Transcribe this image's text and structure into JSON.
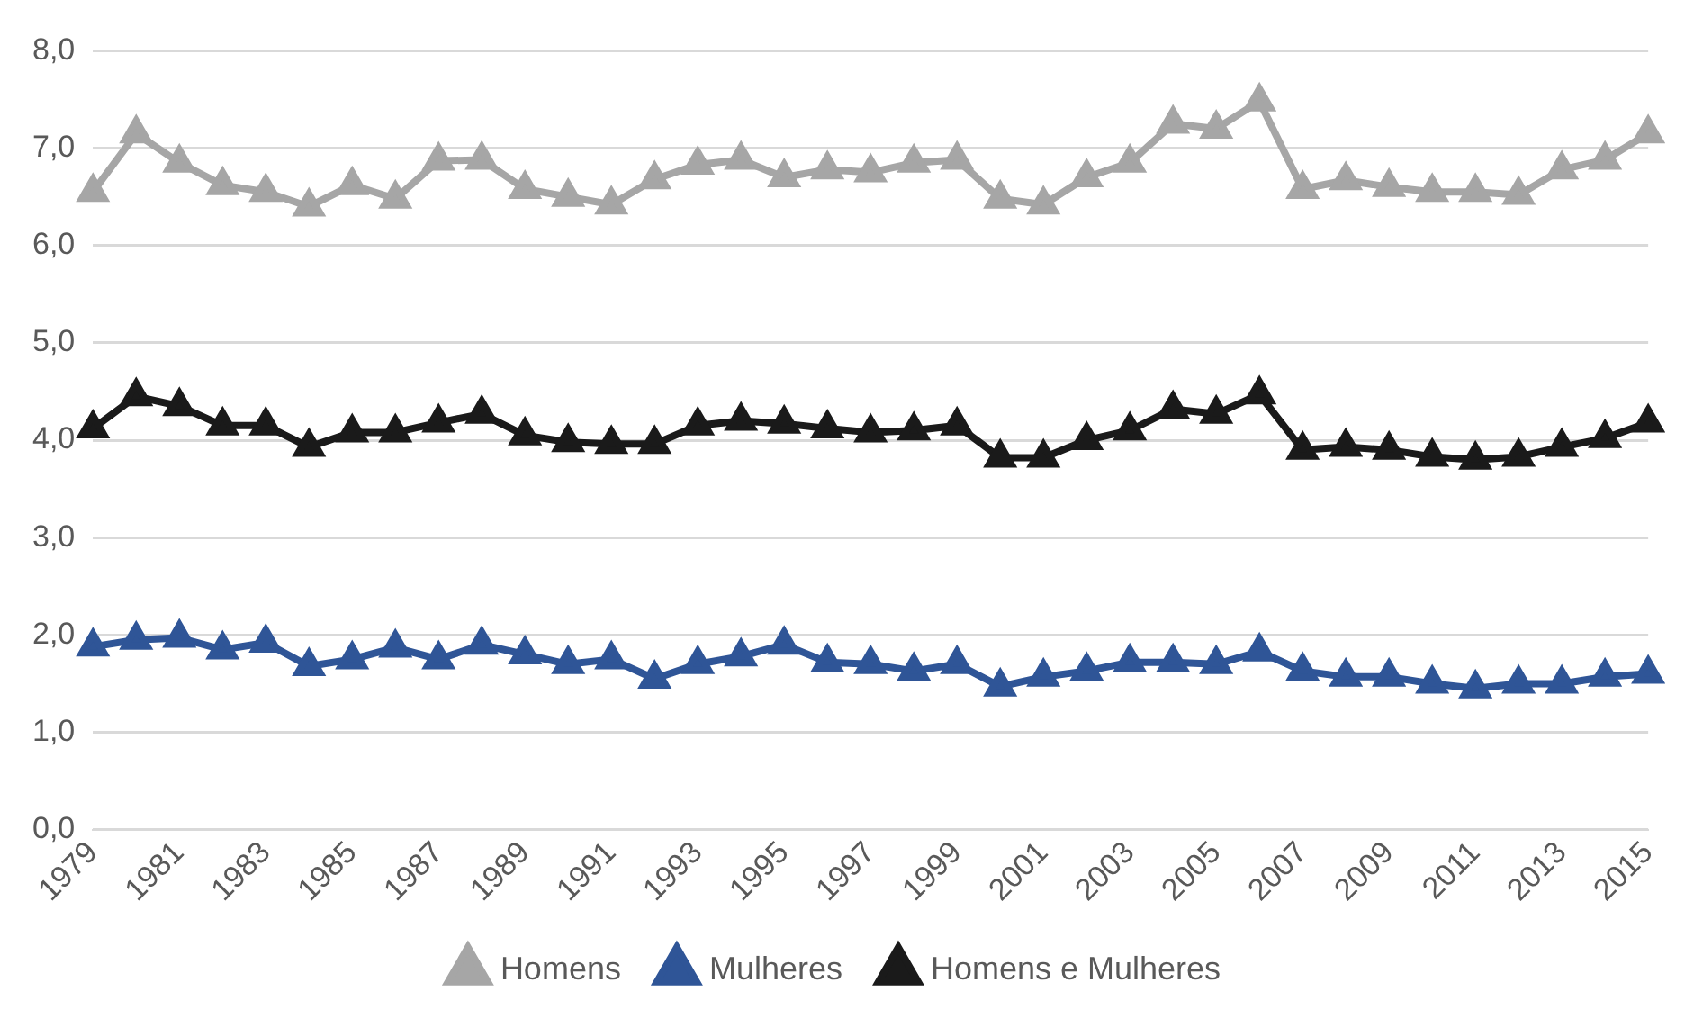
{
  "chart_data": {
    "type": "line",
    "categories": [
      "1979",
      null,
      "1981",
      null,
      "1983",
      null,
      "1985",
      null,
      "1987",
      null,
      "1989",
      null,
      "1991",
      null,
      "1993",
      null,
      "1995",
      null,
      "1997",
      null,
      "1999",
      null,
      "2001",
      null,
      "2003",
      null,
      "2005",
      null,
      "2007",
      null,
      "2009",
      null,
      "2011",
      null,
      "2013",
      null,
      "2015"
    ],
    "series": [
      {
        "name": "Homens",
        "color": "#a6a6a6",
        "values": [
          6.55,
          7.15,
          6.85,
          6.62,
          6.55,
          6.4,
          6.62,
          6.48,
          6.87,
          6.88,
          6.58,
          6.5,
          6.42,
          6.68,
          6.83,
          6.88,
          6.7,
          6.78,
          6.75,
          6.85,
          6.88,
          6.48,
          6.42,
          6.7,
          6.85,
          7.25,
          7.2,
          7.48,
          6.58,
          6.67,
          6.6,
          6.55,
          6.55,
          6.52,
          6.78,
          6.88,
          7.15
        ]
      },
      {
        "name": "Mulheres",
        "color": "#2f5597",
        "values": [
          1.88,
          1.95,
          1.97,
          1.85,
          1.92,
          1.68,
          1.75,
          1.87,
          1.75,
          1.9,
          1.8,
          1.7,
          1.75,
          1.55,
          1.7,
          1.78,
          1.9,
          1.72,
          1.7,
          1.63,
          1.7,
          1.47,
          1.57,
          1.63,
          1.72,
          1.72,
          1.7,
          1.83,
          1.63,
          1.57,
          1.57,
          1.5,
          1.45,
          1.5,
          1.5,
          1.57,
          1.6
        ]
      },
      {
        "name": "Homens e Mulheres",
        "color": "#1a1a1a",
        "values": [
          4.12,
          4.45,
          4.35,
          4.15,
          4.15,
          3.93,
          4.08,
          4.08,
          4.18,
          4.27,
          4.05,
          3.98,
          3.96,
          3.96,
          4.15,
          4.2,
          4.17,
          4.12,
          4.08,
          4.1,
          4.15,
          3.82,
          3.82,
          4.0,
          4.1,
          4.32,
          4.27,
          4.47,
          3.9,
          3.93,
          3.9,
          3.83,
          3.8,
          3.83,
          3.93,
          4.02,
          4.18
        ]
      }
    ],
    "ylim": [
      0,
      8
    ],
    "yticks": [
      {
        "value": 0,
        "label": "0,0"
      },
      {
        "value": 1,
        "label": "1,0"
      },
      {
        "value": 2,
        "label": "2,0"
      },
      {
        "value": 3,
        "label": "3,0"
      },
      {
        "value": 4,
        "label": "4,0"
      },
      {
        "value": 5,
        "label": "5,0"
      },
      {
        "value": 6,
        "label": "6,0"
      },
      {
        "value": 7,
        "label": "7,0"
      },
      {
        "value": 8,
        "label": "8,0"
      }
    ],
    "grid": "y",
    "legend": "bottom",
    "marker": "triangle",
    "line_style": "solid"
  }
}
